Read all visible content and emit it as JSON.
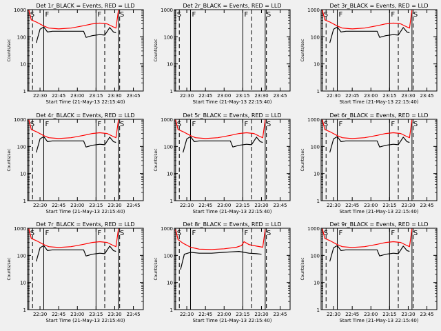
{
  "figure": {
    "background": "#f0f0f0",
    "ink": "#000000",
    "llr_color": "#ff0000"
  },
  "chart_data": [
    {
      "type": "line",
      "title": "Det 1r_BLACK = Events, RED = LLD",
      "xlabel": "Start Time (21-May-13 22:15:40)",
      "ylabel": "Counts/sec",
      "xlim": [
        "22:20",
        "23:53"
      ],
      "ylim": [
        1,
        1000
      ],
      "yscale": "log",
      "xticks": [
        "22:30",
        "22:45",
        "23:00",
        "23:15",
        "23:30",
        "23:45"
      ],
      "yticks": [
        "1",
        "10",
        "100",
        "1000"
      ],
      "flags": [
        {
          "time": "22:21",
          "label": "S",
          "style": "solid"
        },
        {
          "time": "22:33",
          "label": "F",
          "style": "solid"
        },
        {
          "time": "23:15",
          "label": "F",
          "style": "solid"
        },
        {
          "time": "23:33",
          "label": "S",
          "style": "solid"
        }
      ],
      "dashed_lines": [
        "22:24",
        "23:22",
        "23:34"
      ],
      "series": [
        {
          "color": "#ff0000",
          "x": [
            "22:21",
            "22:23",
            "22:27",
            "22:33",
            "22:37",
            "22:45",
            "22:55",
            "23:05",
            "23:12",
            "23:18",
            "23:24",
            "23:29",
            "23:31",
            "23:33"
          ],
          "y": [
            960,
            420,
            350,
            250,
            210,
            195,
            210,
            255,
            300,
            320,
            300,
            230,
            210,
            960
          ]
        },
        {
          "color": "#000000",
          "x": [
            "22:27",
            "22:30",
            "22:33",
            "22:36",
            "22:40",
            "22:45",
            "22:55",
            "23:05",
            "23:07",
            "23:12",
            "23:18",
            "23:22",
            "23:26",
            "23:29",
            "23:31"
          ],
          "y": [
            60,
            190,
            230,
            150,
            160,
            160,
            160,
            160,
            95,
            110,
            120,
            115,
            220,
            150,
            140
          ]
        }
      ]
    },
    {
      "type": "line",
      "title": "Det 2r_BLACK = Events, RED = LLD",
      "xlabel": "Start Time (21-May-13 22:15:40)",
      "ylabel": "Counts/sec",
      "xlim": [
        "22:20",
        "23:53"
      ],
      "ylim": [
        1,
        1000
      ],
      "yscale": "log",
      "xticks": [
        "22:30",
        "22:45",
        "23:00",
        "23:15",
        "23:30",
        "23:45"
      ],
      "yticks": [
        "1",
        "10",
        "100",
        "1000"
      ],
      "flags": [
        {
          "time": "22:21",
          "label": "S",
          "style": "solid"
        },
        {
          "time": "22:33",
          "label": "F",
          "style": "solid"
        },
        {
          "time": "23:15",
          "label": "F",
          "style": "solid"
        },
        {
          "time": "23:33",
          "label": "S",
          "style": "solid"
        }
      ],
      "dashed_lines": [
        "22:24",
        "23:22",
        "23:34"
      ],
      "series": []
    },
    {
      "type": "line",
      "title": "Det 3r_BLACK = Events, RED = LLD",
      "xlabel": "Start Time (21-May-13 22:15:40)",
      "ylabel": "Counts/sec",
      "xlim": [
        "22:20",
        "23:53"
      ],
      "ylim": [
        1,
        1000
      ],
      "yscale": "log",
      "xticks": [
        "22:30",
        "22:45",
        "23:00",
        "23:15",
        "23:30",
        "23:45"
      ],
      "yticks": [
        "1",
        "10",
        "100",
        "1000"
      ],
      "flags": [
        {
          "time": "22:21",
          "label": "S",
          "style": "solid"
        },
        {
          "time": "22:33",
          "label": "F",
          "style": "solid"
        },
        {
          "time": "23:15",
          "label": "F",
          "style": "solid"
        },
        {
          "time": "23:33",
          "label": "S",
          "style": "solid"
        }
      ],
      "dashed_lines": [
        "22:24",
        "23:22",
        "23:34"
      ],
      "series": [
        {
          "color": "#ff0000",
          "x": [
            "22:21",
            "22:23",
            "22:27",
            "22:33",
            "22:37",
            "22:45",
            "22:55",
            "23:05",
            "23:12",
            "23:18",
            "23:24",
            "23:29",
            "23:31",
            "23:33"
          ],
          "y": [
            960,
            420,
            350,
            250,
            210,
            195,
            210,
            255,
            300,
            320,
            300,
            230,
            210,
            960
          ]
        },
        {
          "color": "#000000",
          "x": [
            "22:27",
            "22:30",
            "22:33",
            "22:36",
            "22:40",
            "22:45",
            "22:55",
            "23:05",
            "23:07",
            "23:12",
            "23:18",
            "23:22",
            "23:26",
            "23:29",
            "23:31"
          ],
          "y": [
            60,
            190,
            230,
            150,
            160,
            160,
            160,
            160,
            95,
            110,
            120,
            115,
            220,
            150,
            140
          ]
        }
      ]
    },
    {
      "type": "line",
      "title": "Det 4r_BLACK = Events, RED = LLD",
      "xlabel": "Start Time (21-May-13 22:15:40)",
      "ylabel": "Counts/sec",
      "xlim": [
        "22:20",
        "23:53"
      ],
      "ylim": [
        1,
        1000
      ],
      "yscale": "log",
      "xticks": [
        "22:30",
        "22:45",
        "23:00",
        "23:15",
        "23:30",
        "23:45"
      ],
      "yticks": [
        "1",
        "10",
        "100",
        "1000"
      ],
      "flags": [
        {
          "time": "22:21",
          "label": "S",
          "style": "solid"
        },
        {
          "time": "22:33",
          "label": "F",
          "style": "solid"
        },
        {
          "time": "23:15",
          "label": "F",
          "style": "solid"
        },
        {
          "time": "23:33",
          "label": "S",
          "style": "solid"
        }
      ],
      "dashed_lines": [
        "22:24",
        "23:22",
        "23:34"
      ],
      "series": [
        {
          "color": "#ff0000",
          "x": [
            "22:21",
            "22:23",
            "22:27",
            "22:33",
            "22:37",
            "22:45",
            "22:55",
            "23:05",
            "23:12",
            "23:18",
            "23:24",
            "23:29",
            "23:31",
            "23:33"
          ],
          "y": [
            960,
            420,
            350,
            250,
            210,
            195,
            210,
            255,
            300,
            320,
            300,
            230,
            210,
            960
          ]
        },
        {
          "color": "#000000",
          "x": [
            "22:27",
            "22:30",
            "22:33",
            "22:36",
            "22:40",
            "22:45",
            "22:55",
            "23:05",
            "23:07",
            "23:12",
            "23:18",
            "23:22",
            "23:26",
            "23:29",
            "23:31"
          ],
          "y": [
            60,
            190,
            230,
            150,
            160,
            160,
            160,
            160,
            95,
            110,
            120,
            115,
            220,
            150,
            140
          ]
        }
      ]
    },
    {
      "type": "line",
      "title": "Det 5r_BLACK = Events, RED = LLD",
      "xlabel": "Start Time (21-May-13 22:15:40)",
      "ylabel": "Counts/sec",
      "xlim": [
        "22:20",
        "23:53"
      ],
      "ylim": [
        1,
        1000
      ],
      "yscale": "log",
      "xticks": [
        "22:30",
        "22:45",
        "23:00",
        "23:15",
        "23:30",
        "23:45"
      ],
      "yticks": [
        "1",
        "10",
        "100",
        "1000"
      ],
      "flags": [
        {
          "time": "22:21",
          "label": "S",
          "style": "solid"
        },
        {
          "time": "22:33",
          "label": "F",
          "style": "solid"
        },
        {
          "time": "23:15",
          "label": "F",
          "style": "solid"
        },
        {
          "time": "23:33",
          "label": "S",
          "style": "solid"
        }
      ],
      "dashed_lines": [
        "22:24",
        "23:22",
        "23:34"
      ],
      "series": [
        {
          "color": "#ff0000",
          "x": [
            "22:21",
            "22:23",
            "22:27",
            "22:33",
            "22:37",
            "22:45",
            "22:55",
            "23:05",
            "23:12",
            "23:18",
            "23:24",
            "23:29",
            "23:31",
            "23:33"
          ],
          "y": [
            960,
            420,
            350,
            250,
            210,
            195,
            210,
            255,
            300,
            320,
            300,
            230,
            210,
            960
          ]
        },
        {
          "color": "#000000",
          "x": [
            "22:27",
            "22:30",
            "22:33",
            "22:36",
            "22:40",
            "22:45",
            "22:55",
            "23:05",
            "23:07",
            "23:12",
            "23:18",
            "23:22",
            "23:26",
            "23:29",
            "23:31"
          ],
          "y": [
            60,
            190,
            230,
            150,
            160,
            160,
            160,
            160,
            95,
            110,
            120,
            115,
            220,
            150,
            140
          ]
        }
      ]
    },
    {
      "type": "line",
      "title": "Det 6r_BLACK = Events, RED = LLD",
      "xlabel": "Start Time (21-May-13 22:15:40)",
      "ylabel": "Counts/sec",
      "xlim": [
        "22:20",
        "23:53"
      ],
      "ylim": [
        1,
        1000
      ],
      "yscale": "log",
      "xticks": [
        "22:30",
        "22:45",
        "23:00",
        "23:15",
        "23:30",
        "23:45"
      ],
      "yticks": [
        "1",
        "10",
        "100",
        "1000"
      ],
      "flags": [
        {
          "time": "22:21",
          "label": "S",
          "style": "solid"
        },
        {
          "time": "22:33",
          "label": "F",
          "style": "solid"
        },
        {
          "time": "23:15",
          "label": "F",
          "style": "solid"
        },
        {
          "time": "23:33",
          "label": "S",
          "style": "solid"
        }
      ],
      "dashed_lines": [
        "22:24",
        "23:22",
        "23:34"
      ],
      "series": [
        {
          "color": "#ff0000",
          "x": [
            "22:21",
            "22:23",
            "22:27",
            "22:33",
            "22:37",
            "22:45",
            "22:55",
            "23:05",
            "23:12",
            "23:18",
            "23:24",
            "23:29",
            "23:31",
            "23:33"
          ],
          "y": [
            960,
            420,
            350,
            250,
            210,
            195,
            210,
            255,
            300,
            320,
            300,
            230,
            210,
            960
          ]
        },
        {
          "color": "#000000",
          "x": [
            "22:27",
            "22:30",
            "22:33",
            "22:36",
            "22:40",
            "22:45",
            "22:55",
            "23:05",
            "23:07",
            "23:12",
            "23:18",
            "23:22",
            "23:26",
            "23:29",
            "23:31"
          ],
          "y": [
            60,
            190,
            230,
            150,
            160,
            160,
            160,
            160,
            95,
            110,
            120,
            115,
            220,
            150,
            140
          ]
        }
      ]
    },
    {
      "type": "line",
      "title": "Det 7r_BLACK = Events, RED = LLD",
      "xlabel": "Start Time (21-May-13 22:15:40)",
      "ylabel": "Counts/sec",
      "xlim": [
        "22:20",
        "23:53"
      ],
      "ylim": [
        1,
        1000
      ],
      "yscale": "log",
      "xticks": [
        "22:30",
        "22:45",
        "23:00",
        "23:15",
        "23:30",
        "23:45"
      ],
      "yticks": [
        "1",
        "10",
        "100",
        "1000"
      ],
      "flags": [
        {
          "time": "22:21",
          "label": "S",
          "style": "solid"
        },
        {
          "time": "22:33",
          "label": "F",
          "style": "solid"
        },
        {
          "time": "23:15",
          "label": "F",
          "style": "solid"
        },
        {
          "time": "23:33",
          "label": "S",
          "style": "solid"
        }
      ],
      "dashed_lines": [
        "22:24",
        "23:22",
        "23:34"
      ],
      "series": [
        {
          "color": "#ff0000",
          "x": [
            "22:21",
            "22:23",
            "22:27",
            "22:33",
            "22:37",
            "22:45",
            "22:55",
            "23:05",
            "23:12",
            "23:18",
            "23:24",
            "23:29",
            "23:31",
            "23:33"
          ],
          "y": [
            960,
            420,
            350,
            250,
            210,
            195,
            210,
            255,
            300,
            320,
            300,
            230,
            210,
            960
          ]
        },
        {
          "color": "#000000",
          "x": [
            "22:27",
            "22:30",
            "22:33",
            "22:36",
            "22:40",
            "22:45",
            "22:55",
            "23:05",
            "23:07",
            "23:12",
            "23:18",
            "23:22",
            "23:26",
            "23:29",
            "23:31"
          ],
          "y": [
            60,
            190,
            230,
            150,
            160,
            160,
            160,
            160,
            95,
            110,
            120,
            115,
            220,
            150,
            140
          ]
        }
      ]
    },
    {
      "type": "line",
      "title": "Det 8r_BLACK = Events, RED = LLD",
      "xlabel": "Start Time (21-May-13 22:15:40)",
      "ylabel": "Counts/sec",
      "xlim": [
        "22:20",
        "23:53"
      ],
      "ylim": [
        1,
        1000
      ],
      "yscale": "log",
      "xticks": [
        "22:30",
        "22:45",
        "23:00",
        "23:15",
        "23:30",
        "23:45"
      ],
      "yticks": [
        "1",
        "10",
        "100",
        "1000"
      ],
      "flags": [
        {
          "time": "22:21",
          "label": "S",
          "style": "solid"
        },
        {
          "time": "22:33",
          "label": "F",
          "style": "solid"
        },
        {
          "time": "23:15",
          "label": "F",
          "style": "solid"
        },
        {
          "time": "23:33",
          "label": "S",
          "style": "solid"
        }
      ],
      "dashed_lines": [
        "22:24",
        "23:22",
        "23:34"
      ],
      "series": [
        {
          "color": "#ff0000",
          "x": [
            "22:21",
            "22:23",
            "22:27",
            "22:33",
            "22:40",
            "22:50",
            "23:00",
            "23:10",
            "23:14",
            "23:16",
            "23:20",
            "23:26",
            "23:31",
            "23:33"
          ],
          "y": [
            900,
            380,
            280,
            200,
            170,
            165,
            175,
            200,
            230,
            320,
            250,
            220,
            200,
            900
          ]
        },
        {
          "color": "#000000",
          "x": [
            "22:25",
            "22:28",
            "22:33",
            "22:40",
            "22:50",
            "23:00",
            "23:06",
            "23:12",
            "23:16",
            "23:20",
            "23:26",
            "23:30"
          ],
          "y": [
            30,
            110,
            130,
            120,
            120,
            130,
            135,
            140,
            130,
            120,
            115,
            110
          ]
        }
      ]
    },
    {
      "type": "line",
      "title": "Det 9r_BLACK = Events, RED = LLD",
      "xlabel": "Start Time (21-May-13 22:15:40)",
      "ylabel": "Counts/sec",
      "xlim": [
        "22:20",
        "23:53"
      ],
      "ylim": [
        1,
        1000
      ],
      "yscale": "log",
      "xticks": [
        "22:30",
        "22:45",
        "23:00",
        "23:15",
        "23:30",
        "23:45"
      ],
      "yticks": [
        "1",
        "10",
        "100",
        "1000"
      ],
      "flags": [
        {
          "time": "22:21",
          "label": "S",
          "style": "solid"
        },
        {
          "time": "22:33",
          "label": "F",
          "style": "solid"
        },
        {
          "time": "23:15",
          "label": "F",
          "style": "solid"
        },
        {
          "time": "23:33",
          "label": "S",
          "style": "solid"
        }
      ],
      "dashed_lines": [
        "22:24",
        "23:22",
        "23:34"
      ],
      "series": [
        {
          "color": "#ff0000",
          "x": [
            "22:21",
            "22:23",
            "22:27",
            "22:33",
            "22:37",
            "22:45",
            "22:55",
            "23:05",
            "23:12",
            "23:18",
            "23:24",
            "23:29",
            "23:31",
            "23:33"
          ],
          "y": [
            960,
            420,
            350,
            250,
            210,
            195,
            210,
            255,
            300,
            320,
            300,
            230,
            210,
            960
          ]
        },
        {
          "color": "#000000",
          "x": [
            "22:27",
            "22:30",
            "22:33",
            "22:36",
            "22:40",
            "22:45",
            "22:55",
            "23:05",
            "23:07",
            "23:12",
            "23:18",
            "23:22",
            "23:26",
            "23:29",
            "23:31"
          ],
          "y": [
            60,
            190,
            230,
            150,
            160,
            160,
            160,
            160,
            95,
            110,
            120,
            115,
            220,
            150,
            140
          ]
        }
      ]
    }
  ]
}
